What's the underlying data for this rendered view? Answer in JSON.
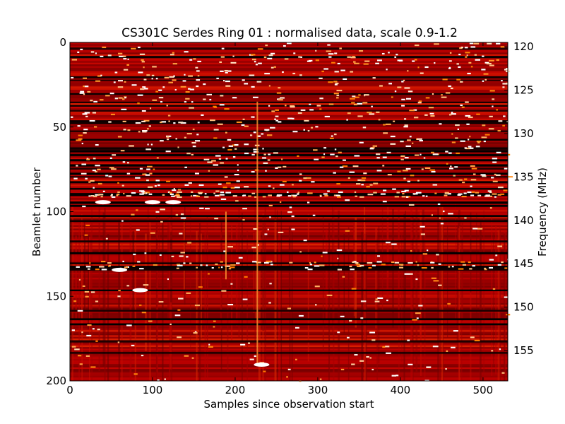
{
  "chart_data": {
    "type": "heatmap",
    "title": "CS301C Serdes Ring 01 : normalised data, scale 0.9-1.2",
    "xlabel": "Samples since observation start",
    "ylabel": "Beamlet number",
    "ylabel_right": "Frequency (MHz)",
    "xlim": [
      0,
      530
    ],
    "ylim": [
      200,
      0
    ],
    "ylim_right": [
      119.5,
      158.5
    ],
    "x_ticks": [
      "0",
      "100",
      "200",
      "300",
      "400",
      "500"
    ],
    "y_ticks": [
      "0",
      "50",
      "100",
      "150",
      "200"
    ],
    "y_right_ticks": [
      "120",
      "125",
      "130",
      "135",
      "140",
      "145",
      "150",
      "155"
    ],
    "color_scale": {
      "min": 0.9,
      "max": 1.2,
      "colormap": "gist_heat",
      "low_color": "#000000",
      "mid_color": "#c44000",
      "high_color": "#ffffff"
    },
    "background_value": 1.02,
    "dark_rows": [
      3,
      8,
      20,
      22,
      30,
      35,
      37,
      40,
      46,
      47,
      52,
      57,
      62,
      63,
      64,
      66,
      69,
      72,
      74,
      77,
      79,
      82,
      86,
      89,
      90,
      94,
      96,
      102,
      105,
      117,
      124,
      130,
      132,
      133,
      134,
      146,
      158,
      163,
      166,
      176,
      183
    ],
    "bright_vertical_lines": [
      {
        "x": 188,
        "from": 100,
        "to": 140
      },
      {
        "x": 226,
        "from": 35,
        "to": 190
      }
    ],
    "bright_blobs": [
      {
        "x": 40,
        "beamlet": 94
      },
      {
        "x": 125,
        "beamlet": 94
      },
      {
        "x": 100,
        "beamlet": 94
      },
      {
        "x": 60,
        "beamlet": 134
      },
      {
        "x": 85,
        "beamlet": 146
      },
      {
        "x": 232,
        "beamlet": 190
      }
    ]
  }
}
